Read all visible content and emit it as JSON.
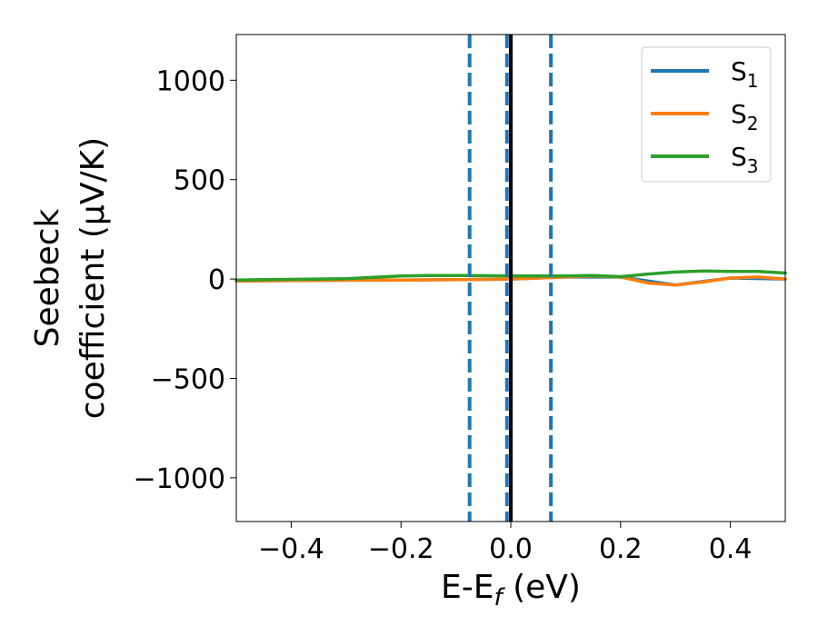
{
  "chart_data": {
    "type": "line",
    "xlabel_parts": {
      "base": "E-E",
      "sub": "f",
      "unit": " (eV)"
    },
    "ylabel_lines": [
      "Seebeck",
      "coefficient  (μV/K)"
    ],
    "xlim": [
      -0.5,
      0.5
    ],
    "ylim": [
      -1220,
      1230
    ],
    "x_ticks": [
      -0.4,
      -0.2,
      0.0,
      0.2,
      0.4
    ],
    "x_tick_labels": [
      "−0.4",
      "−0.2",
      "0.0",
      "0.2",
      "0.4"
    ],
    "y_ticks": [
      -1000,
      -500,
      0,
      500,
      1000
    ],
    "y_tick_labels": [
      "−1000",
      "−500",
      "0",
      "500",
      "1000"
    ],
    "grid": false,
    "legend_position": "top-right",
    "vertical_lines": [
      {
        "x": 0.0,
        "style": "solid",
        "color": "#000000"
      },
      {
        "x": -0.075,
        "style": "dashed",
        "color": "#1f77b4"
      },
      {
        "x": -0.007,
        "style": "dashed",
        "color": "#1f77b4"
      },
      {
        "x": 0.073,
        "style": "dashed",
        "color": "#1f77b4"
      }
    ],
    "series": [
      {
        "name": "S",
        "sub": "1",
        "color": "#1f77b4",
        "x": [
          -0.5,
          -0.4,
          -0.3,
          -0.2,
          -0.1,
          0.0,
          0.1,
          0.2,
          0.3,
          0.4,
          0.5
        ],
        "y": [
          -10,
          -8,
          -6,
          -5,
          -3,
          0,
          10,
          10,
          -30,
          5,
          0
        ]
      },
      {
        "name": "S",
        "sub": "2",
        "color": "#ff7f0e",
        "x": [
          -0.5,
          -0.45,
          -0.4,
          -0.35,
          -0.3,
          -0.25,
          -0.2,
          -0.15,
          -0.1,
          -0.05,
          0.0,
          0.05,
          0.1,
          0.15,
          0.2,
          0.25,
          0.3,
          0.35,
          0.4,
          0.45,
          0.5
        ],
        "y": [
          -10,
          -9,
          -8,
          -7,
          -6,
          -5,
          -5,
          -4,
          -3,
          -2,
          0,
          5,
          10,
          15,
          10,
          -20,
          -30,
          -15,
          5,
          10,
          0
        ]
      },
      {
        "name": "S",
        "sub": "3",
        "color": "#2ca02c",
        "x": [
          -0.5,
          -0.45,
          -0.4,
          -0.35,
          -0.3,
          -0.25,
          -0.2,
          -0.15,
          -0.1,
          -0.05,
          0.0,
          0.05,
          0.1,
          0.15,
          0.2,
          0.25,
          0.3,
          0.35,
          0.4,
          0.45,
          0.5
        ],
        "y": [
          -5,
          -3,
          -2,
          0,
          2,
          8,
          15,
          18,
          18,
          17,
          15,
          15,
          15,
          18,
          12,
          25,
          35,
          40,
          38,
          38,
          30
        ]
      }
    ]
  }
}
